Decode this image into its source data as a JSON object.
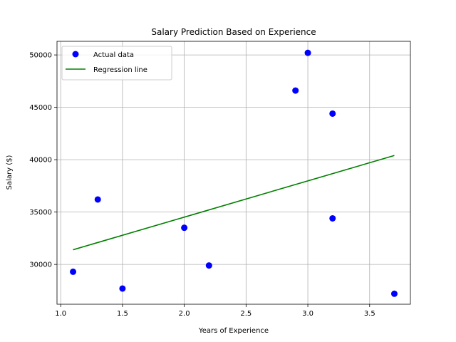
{
  "chart_data": {
    "type": "scatter",
    "title": "Salary Prediction Based on Experience",
    "xlabel": "Years of Experience",
    "ylabel": "Salary ($)",
    "xlim": [
      0.97,
      3.83
    ],
    "ylim": [
      26200,
      51300
    ],
    "xticks": [
      1.0,
      1.5,
      2.0,
      2.5,
      3.0,
      3.5
    ],
    "xtick_labels": [
      "1.0",
      "1.5",
      "2.0",
      "2.5",
      "3.0",
      "3.5"
    ],
    "yticks": [
      30000,
      35000,
      40000,
      45000,
      50000
    ],
    "ytick_labels": [
      "30000",
      "35000",
      "40000",
      "45000",
      "50000"
    ],
    "grid": true,
    "legend_position": "top-left",
    "series": [
      {
        "name": "Actual data",
        "kind": "scatter",
        "color": "#0000ff",
        "points": [
          {
            "x": 1.1,
            "y": 29300
          },
          {
            "x": 1.3,
            "y": 36200
          },
          {
            "x": 1.5,
            "y": 27700
          },
          {
            "x": 2.0,
            "y": 33500
          },
          {
            "x": 2.2,
            "y": 29900
          },
          {
            "x": 2.9,
            "y": 46600
          },
          {
            "x": 3.0,
            "y": 50200
          },
          {
            "x": 3.2,
            "y": 44400
          },
          {
            "x": 3.2,
            "y": 34400
          },
          {
            "x": 3.7,
            "y": 27200
          }
        ]
      },
      {
        "name": "Regression line",
        "kind": "line",
        "color": "#008000",
        "points": [
          {
            "x": 1.1,
            "y": 31400
          },
          {
            "x": 3.7,
            "y": 40400
          }
        ]
      }
    ]
  }
}
